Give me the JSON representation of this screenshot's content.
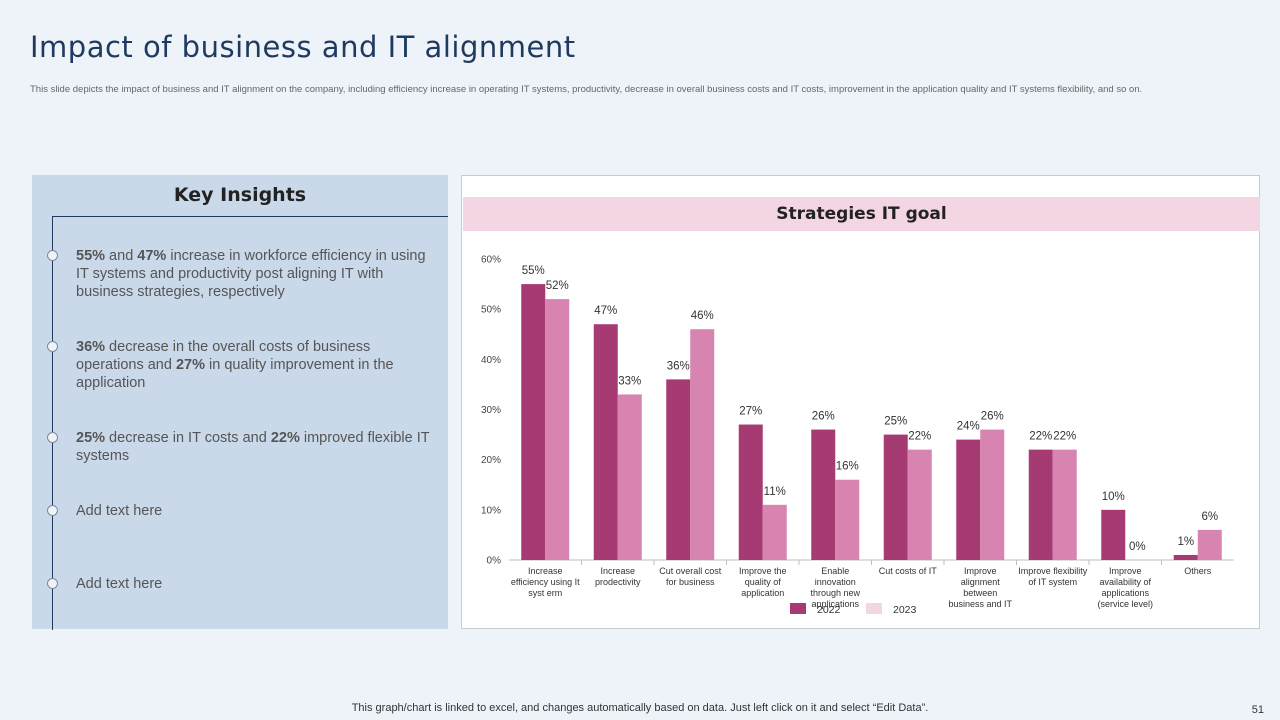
{
  "title": "Impact of business and IT alignment",
  "subtitle": "This slide depicts the impact of business and IT alignment  on the company, including  efficiency increase in operating IT  systems, productivity, decrease in overall business costs and IT costs, improvement in the application quality and IT  systems flexibility, and so on.",
  "insights": {
    "title": "Key Insights",
    "points": [
      {
        "b1": "55%",
        "t1": " and ",
        "b2": "47%",
        "t2": "  increase in workforce efficiency in using IT systems and productivity post aligning IT with business strategies, respectively"
      },
      {
        "b1": "36%",
        "t1": " decrease in the overall  costs of business operations and ",
        "b2": "27%",
        "t2": " in quality improvement in the application"
      },
      {
        "b1": "25%",
        "t1": " decrease in IT costs and ",
        "b2": "22%",
        "t2": " improved flexible IT systems"
      },
      {
        "text": "Add text here"
      },
      {
        "text": "Add text here"
      }
    ]
  },
  "chart_header": "Strategies  IT goal",
  "chart_data": {
    "type": "bar",
    "title": "Strategies  IT goal",
    "categories": [
      [
        "Increase",
        "efficiency using It",
        "syst erm"
      ],
      [
        "Increase",
        "prodectivity"
      ],
      [
        "Cut overall cost",
        "for business"
      ],
      [
        "Improve the",
        "quality of",
        "application"
      ],
      [
        "Enable",
        "innovation",
        "through new",
        "applications"
      ],
      [
        "Cut costs of IT"
      ],
      [
        "Improve",
        "alignment",
        "between",
        "business and IT"
      ],
      [
        "Improve flexibility",
        "of IT system"
      ],
      [
        "Improve",
        "availability of",
        "applications",
        "(service level)"
      ],
      [
        "Others"
      ]
    ],
    "series": [
      {
        "name": "2022",
        "color": "#a63a72",
        "values": [
          55,
          47,
          36,
          27,
          26,
          25,
          24,
          22,
          10,
          1
        ]
      },
      {
        "name": "2023",
        "color": "#d784b0",
        "values": [
          52,
          33,
          46,
          11,
          16,
          22,
          26,
          22,
          0,
          6
        ]
      }
    ],
    "ylim": [
      0,
      60
    ],
    "yticks": [
      0,
      10,
      20,
      30,
      40,
      50,
      60
    ],
    "ytick_labels": [
      "0%",
      "10%",
      "20%",
      "30%",
      "40%",
      "50%",
      "60%"
    ],
    "value_suffix": "%",
    "legend": [
      {
        "label": "2022",
        "color": "#a63a72"
      },
      {
        "label": "2023",
        "color": "#f4d5e3"
      }
    ],
    "legend_position": "bottom"
  },
  "footer": "This graph/chart is linked to excel,  and changes automatically based on data. Just left click on it and select “Edit Data”.",
  "page_number": "51"
}
